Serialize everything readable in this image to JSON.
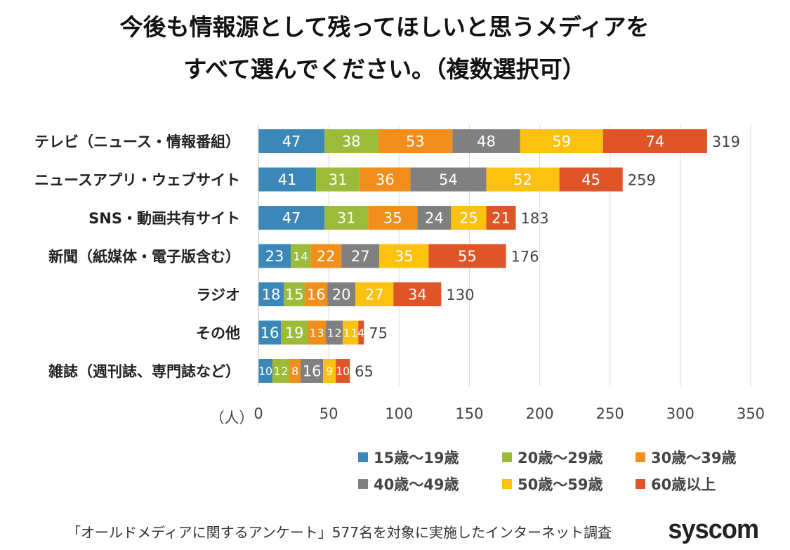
{
  "chart_data": {
    "type": "bar",
    "orientation": "horizontal",
    "stacked": true,
    "title": [
      "今後も情報源として残ってほしいと思うメディアを",
      "すべて選んでください。（複数選択可）"
    ],
    "xlabel": "（人）",
    "xlim": [
      0,
      350
    ],
    "xticks": [
      0,
      50,
      100,
      150,
      200,
      250,
      300,
      350
    ],
    "grid": true,
    "legend_placement": "bottom-right",
    "categories": [
      "テレビ（ニュース・情報番組）",
      "ニュースアプリ・ウェブサイト",
      "SNS・動画共有サイト",
      "新聞（紙媒体・電子版含む）",
      "ラジオ",
      "その他",
      "雑誌（週刊誌、専門誌など）"
    ],
    "totals": [
      319,
      259,
      183,
      176,
      130,
      75,
      65
    ],
    "series": [
      {
        "name": "15歳〜19歳",
        "color": "#3b87b8",
        "values": [
          47,
          41,
          47,
          23,
          18,
          16,
          10
        ]
      },
      {
        "name": "20歳〜29歳",
        "color": "#9cbb3a",
        "values": [
          38,
          31,
          31,
          14,
          15,
          19,
          12
        ]
      },
      {
        "name": "30歳〜39歳",
        "color": "#f28e1c",
        "values": [
          53,
          36,
          35,
          22,
          16,
          13,
          8
        ]
      },
      {
        "name": "40歳〜49歳",
        "color": "#808080",
        "values": [
          48,
          54,
          24,
          27,
          20,
          12,
          16
        ]
      },
      {
        "name": "50歳〜59歳",
        "color": "#fdc10f",
        "values": [
          59,
          52,
          25,
          35,
          27,
          11,
          9
        ]
      },
      {
        "name": "60歳以上",
        "color": "#e05528",
        "values": [
          74,
          45,
          21,
          55,
          34,
          4,
          10
        ]
      }
    ]
  },
  "footer": {
    "note": "「オールドメディアに関する​アンケート」577名を対象に実施したインターネット調査",
    "logo": "syscom"
  }
}
